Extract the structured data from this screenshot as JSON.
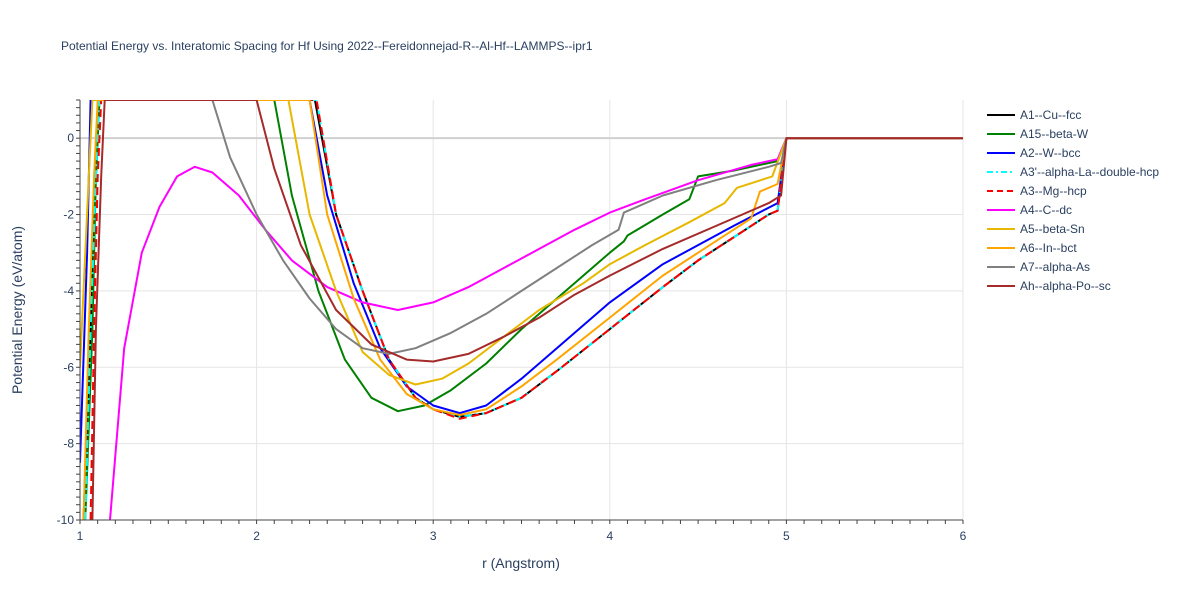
{
  "chart_data": {
    "type": "line",
    "title": "Potential Energy vs. Interatomic Spacing for Hf Using 2022--Fereidonnejad-R--Al-Hf--LAMMPS--ipr1",
    "xlabel": "r (Angstrom)",
    "ylabel": "Potential Energy (eV/atom)",
    "xlim": [
      1,
      6
    ],
    "ylim": [
      -10,
      1
    ],
    "xticks": [
      1,
      2,
      3,
      4,
      5,
      6
    ],
    "yticks": [
      0,
      -2,
      -4,
      -6,
      -8,
      -10
    ],
    "grid": true,
    "legend_position": "right",
    "series": [
      {
        "name": "A1--Cu--fcc",
        "color": "#000000",
        "dash": "solid",
        "points": [
          [
            1.02,
            -10
          ],
          [
            1.06,
            -5
          ],
          [
            1.09,
            -1
          ],
          [
            1.11,
            1
          ],
          [
            2.33,
            1
          ],
          [
            2.45,
            -2
          ],
          [
            2.6,
            -4
          ],
          [
            2.75,
            -5.8
          ],
          [
            2.9,
            -6.8
          ],
          [
            3.0,
            -7.1
          ],
          [
            3.15,
            -7.3
          ],
          [
            3.3,
            -7.2
          ],
          [
            3.5,
            -6.8
          ],
          [
            3.7,
            -6.1
          ],
          [
            4.0,
            -5.0
          ],
          [
            4.3,
            -3.9
          ],
          [
            4.5,
            -3.2
          ],
          [
            4.7,
            -2.6
          ],
          [
            4.9,
            -2.0
          ],
          [
            4.95,
            -1.9
          ],
          [
            5.0,
            0
          ],
          [
            6.0,
            0
          ]
        ]
      },
      {
        "name": "A15--beta-W",
        "color": "#008000",
        "dash": "solid",
        "points": [
          [
            1.03,
            -10
          ],
          [
            1.07,
            -5
          ],
          [
            1.09,
            -1
          ],
          [
            1.11,
            1
          ],
          [
            2.1,
            1
          ],
          [
            2.2,
            -1.5
          ],
          [
            2.35,
            -4
          ],
          [
            2.5,
            -5.8
          ],
          [
            2.65,
            -6.8
          ],
          [
            2.8,
            -7.15
          ],
          [
            2.95,
            -7.0
          ],
          [
            3.1,
            -6.6
          ],
          [
            3.3,
            -5.9
          ],
          [
            3.5,
            -5.0
          ],
          [
            3.75,
            -4.0
          ],
          [
            4.0,
            -3.0
          ],
          [
            4.08,
            -2.7
          ],
          [
            4.1,
            -2.55
          ],
          [
            4.3,
            -2.0
          ],
          [
            4.45,
            -1.6
          ],
          [
            4.5,
            -1.0
          ],
          [
            4.7,
            -0.85
          ],
          [
            4.95,
            -0.6
          ],
          [
            5.0,
            0
          ],
          [
            6.0,
            0
          ]
        ]
      },
      {
        "name": "A2--W--bcc",
        "color": "#0000ff",
        "dash": "solid",
        "points": [
          [
            1.0,
            -8.5
          ],
          [
            1.04,
            -3
          ],
          [
            1.06,
            1
          ],
          [
            2.3,
            1
          ],
          [
            2.4,
            -1.5
          ],
          [
            2.55,
            -3.8
          ],
          [
            2.7,
            -5.5
          ],
          [
            2.85,
            -6.5
          ],
          [
            3.0,
            -7.0
          ],
          [
            3.15,
            -7.2
          ],
          [
            3.3,
            -7.0
          ],
          [
            3.5,
            -6.3
          ],
          [
            3.7,
            -5.5
          ],
          [
            4.0,
            -4.3
          ],
          [
            4.3,
            -3.3
          ],
          [
            4.5,
            -2.8
          ],
          [
            4.7,
            -2.3
          ],
          [
            4.95,
            -1.7
          ],
          [
            5.0,
            0
          ],
          [
            6.0,
            0
          ]
        ]
      },
      {
        "name": "A3'--alpha-La--double-hcp",
        "color": "#00ffff",
        "dash": "dashdot",
        "points": [
          [
            1.03,
            -10
          ],
          [
            1.06,
            -5
          ],
          [
            1.09,
            -1
          ],
          [
            1.11,
            1
          ],
          [
            2.34,
            1
          ],
          [
            2.45,
            -2
          ],
          [
            2.6,
            -4
          ],
          [
            2.75,
            -5.8
          ],
          [
            2.9,
            -6.8
          ],
          [
            3.0,
            -7.1
          ],
          [
            3.15,
            -7.3
          ],
          [
            3.3,
            -7.2
          ],
          [
            3.5,
            -6.8
          ],
          [
            3.7,
            -6.1
          ],
          [
            4.0,
            -5.0
          ],
          [
            4.3,
            -3.9
          ],
          [
            4.5,
            -3.2
          ],
          [
            4.7,
            -2.6
          ],
          [
            4.9,
            -2.0
          ],
          [
            4.95,
            -1.9
          ],
          [
            5.0,
            0
          ],
          [
            6.0,
            0
          ]
        ]
      },
      {
        "name": "A3--Mg--hcp",
        "color": "#ff0000",
        "dash": "dash",
        "points": [
          [
            1.06,
            -10
          ],
          [
            1.08,
            -5
          ],
          [
            1.1,
            -1
          ],
          [
            1.12,
            1
          ],
          [
            2.34,
            1
          ],
          [
            2.45,
            -2
          ],
          [
            2.6,
            -4
          ],
          [
            2.75,
            -5.8
          ],
          [
            2.9,
            -6.8
          ],
          [
            3.0,
            -7.1
          ],
          [
            3.15,
            -7.35
          ],
          [
            3.3,
            -7.2
          ],
          [
            3.5,
            -6.8
          ],
          [
            3.7,
            -6.1
          ],
          [
            4.0,
            -5.0
          ],
          [
            4.3,
            -3.9
          ],
          [
            4.5,
            -3.2
          ],
          [
            4.7,
            -2.6
          ],
          [
            4.9,
            -2.0
          ],
          [
            4.95,
            -1.9
          ],
          [
            5.0,
            0
          ],
          [
            6.0,
            0
          ]
        ]
      },
      {
        "name": "A4--C--dc",
        "color": "#ff00ff",
        "dash": "solid",
        "points": [
          [
            1.17,
            -10
          ],
          [
            1.25,
            -5.5
          ],
          [
            1.35,
            -3.0
          ],
          [
            1.45,
            -1.8
          ],
          [
            1.55,
            -1.0
          ],
          [
            1.65,
            -0.75
          ],
          [
            1.75,
            -0.9
          ],
          [
            1.9,
            -1.5
          ],
          [
            2.05,
            -2.4
          ],
          [
            2.2,
            -3.2
          ],
          [
            2.4,
            -3.9
          ],
          [
            2.6,
            -4.3
          ],
          [
            2.8,
            -4.5
          ],
          [
            3.0,
            -4.3
          ],
          [
            3.2,
            -3.9
          ],
          [
            3.4,
            -3.4
          ],
          [
            3.6,
            -2.9
          ],
          [
            3.8,
            -2.4
          ],
          [
            4.0,
            -1.95
          ],
          [
            4.2,
            -1.6
          ],
          [
            4.5,
            -1.1
          ],
          [
            4.8,
            -0.7
          ],
          [
            4.95,
            -0.55
          ],
          [
            5.0,
            0
          ],
          [
            6.0,
            0
          ]
        ]
      },
      {
        "name": "A5--beta-Sn",
        "color": "#e6b800",
        "dash": "solid",
        "points": [
          [
            1.0,
            -6
          ],
          [
            1.05,
            -1
          ],
          [
            1.07,
            1
          ],
          [
            2.18,
            1
          ],
          [
            2.3,
            -2
          ],
          [
            2.45,
            -4.0
          ],
          [
            2.6,
            -5.6
          ],
          [
            2.75,
            -6.2
          ],
          [
            2.9,
            -6.45
          ],
          [
            3.05,
            -6.3
          ],
          [
            3.2,
            -5.9
          ],
          [
            3.4,
            -5.2
          ],
          [
            3.6,
            -4.5
          ],
          [
            3.85,
            -3.8
          ],
          [
            4.0,
            -3.3
          ],
          [
            4.2,
            -2.8
          ],
          [
            4.45,
            -2.2
          ],
          [
            4.65,
            -1.7
          ],
          [
            4.72,
            -1.3
          ],
          [
            4.92,
            -1.0
          ],
          [
            5.0,
            0
          ],
          [
            6.0,
            0
          ]
        ]
      },
      {
        "name": "A6--In--bct",
        "color": "#ffa500",
        "dash": "solid",
        "points": [
          [
            1.02,
            -10
          ],
          [
            1.05,
            -5
          ],
          [
            1.08,
            -1
          ],
          [
            1.1,
            1
          ],
          [
            2.3,
            1
          ],
          [
            2.4,
            -2
          ],
          [
            2.55,
            -4.2
          ],
          [
            2.7,
            -5.8
          ],
          [
            2.85,
            -6.7
          ],
          [
            3.0,
            -7.1
          ],
          [
            3.15,
            -7.25
          ],
          [
            3.3,
            -7.1
          ],
          [
            3.5,
            -6.5
          ],
          [
            3.7,
            -5.8
          ],
          [
            4.0,
            -4.7
          ],
          [
            4.3,
            -3.6
          ],
          [
            4.5,
            -3.0
          ],
          [
            4.7,
            -2.4
          ],
          [
            4.8,
            -2.1
          ],
          [
            4.85,
            -1.4
          ],
          [
            4.95,
            -1.2
          ],
          [
            5.0,
            0
          ],
          [
            6.0,
            0
          ]
        ]
      },
      {
        "name": "A7--alpha-As",
        "color": "#808080",
        "dash": "solid",
        "points": [
          [
            1.75,
            1
          ],
          [
            1.85,
            -0.5
          ],
          [
            2.0,
            -2.0
          ],
          [
            2.15,
            -3.2
          ],
          [
            2.3,
            -4.2
          ],
          [
            2.45,
            -5.0
          ],
          [
            2.6,
            -5.5
          ],
          [
            2.75,
            -5.65
          ],
          [
            2.9,
            -5.5
          ],
          [
            3.1,
            -5.1
          ],
          [
            3.3,
            -4.6
          ],
          [
            3.5,
            -4.0
          ],
          [
            3.7,
            -3.4
          ],
          [
            3.9,
            -2.8
          ],
          [
            4.05,
            -2.4
          ],
          [
            4.08,
            -1.95
          ],
          [
            4.3,
            -1.5
          ],
          [
            4.6,
            -1.1
          ],
          [
            4.9,
            -0.75
          ],
          [
            4.97,
            -0.65
          ],
          [
            5.0,
            0
          ],
          [
            6.0,
            0
          ]
        ]
      },
      {
        "name": "Ah--alpha-Po--sc",
        "color": "#a52a2a",
        "dash": "solid",
        "points": [
          [
            1.07,
            -10
          ],
          [
            1.09,
            -5
          ],
          [
            1.12,
            -1
          ],
          [
            1.14,
            1
          ],
          [
            2.0,
            1
          ],
          [
            2.1,
            -0.8
          ],
          [
            2.25,
            -2.8
          ],
          [
            2.45,
            -4.5
          ],
          [
            2.65,
            -5.4
          ],
          [
            2.85,
            -5.8
          ],
          [
            3.0,
            -5.85
          ],
          [
            3.2,
            -5.65
          ],
          [
            3.4,
            -5.2
          ],
          [
            3.6,
            -4.7
          ],
          [
            3.8,
            -4.1
          ],
          [
            4.0,
            -3.6
          ],
          [
            4.3,
            -2.9
          ],
          [
            4.6,
            -2.3
          ],
          [
            4.9,
            -1.7
          ],
          [
            4.97,
            -1.5
          ],
          [
            5.0,
            0
          ],
          [
            6.0,
            0
          ]
        ]
      }
    ]
  }
}
